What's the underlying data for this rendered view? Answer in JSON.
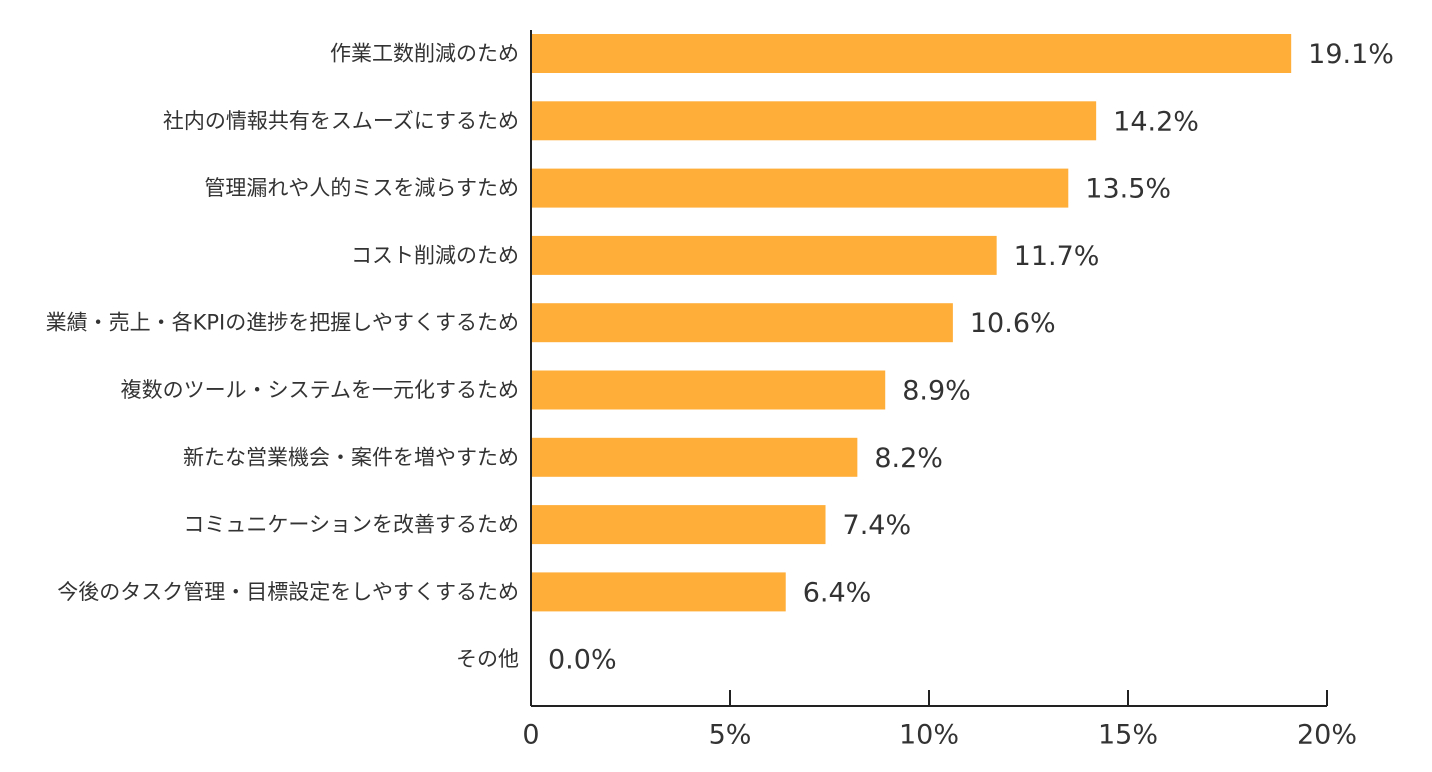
{
  "chart_data": {
    "type": "bar",
    "orientation": "horizontal",
    "title": "",
    "xlabel": "",
    "ylabel": "",
    "categories": [
      "作業工数削減のため",
      "社内の情報共有をスムーズにするため",
      "管理漏れや人的ミスを減らすため",
      "コスト削減のため",
      "業績・売上・各KPIの進捗を把握しやすくするため",
      "複数のツール・システムを一元化するため",
      "新たな営業機会・案件を増やすため",
      "コミュニケーションを改善するため",
      "今後のタスク管理・目標設定をしやすくするため",
      "その他"
    ],
    "values": [
      19.1,
      14.2,
      13.5,
      11.7,
      10.6,
      8.9,
      8.2,
      7.4,
      6.4,
      0.0
    ],
    "value_labels": [
      "19.1%",
      "14.2%",
      "13.5%",
      "11.7%",
      "10.6%",
      "8.9%",
      "8.2%",
      "7.4%",
      "6.4%",
      "0.0%"
    ],
    "xlim": [
      0,
      20
    ],
    "x_ticks": [
      0,
      5,
      10,
      15,
      20
    ],
    "x_tick_labels": [
      "0",
      "5%",
      "10%",
      "15%",
      "20%"
    ],
    "grid": false,
    "legend": "none",
    "bar_color": "#FFAE3A",
    "axis_color": "#222222",
    "text_color": "#333333"
  }
}
